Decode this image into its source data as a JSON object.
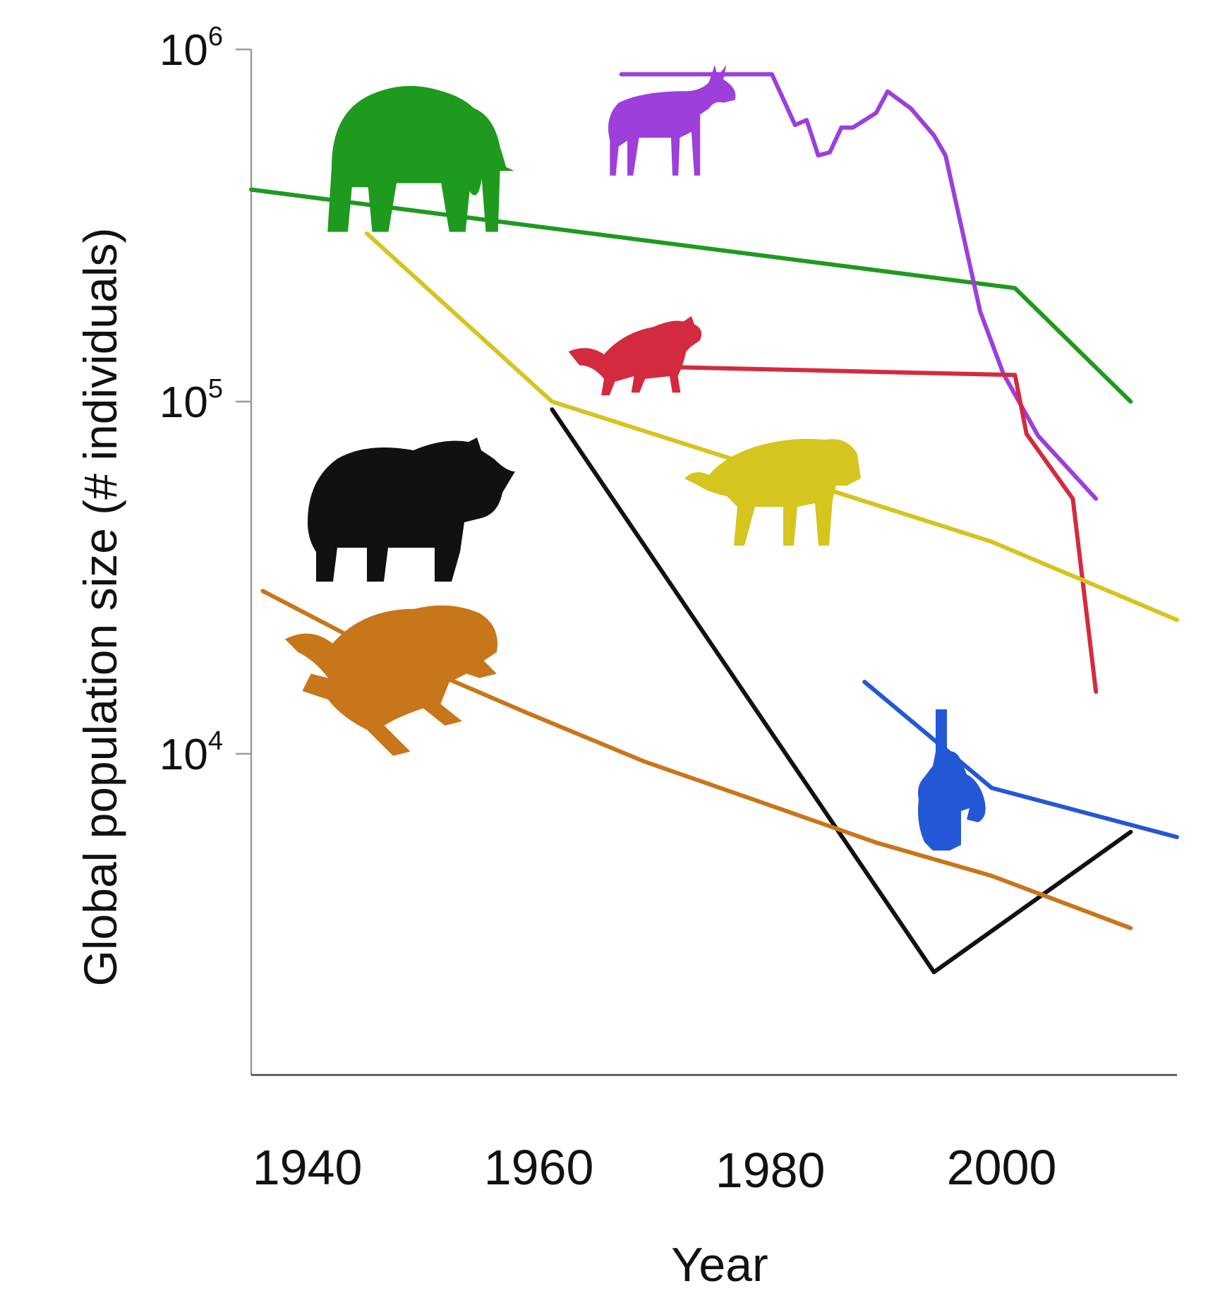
{
  "chart_data": {
    "type": "line",
    "title": "",
    "xlabel": "Year",
    "ylabel": "Global population size (# individuals)",
    "x_scale": "linear",
    "y_scale": "log",
    "xlim": [
      1936,
      2016
    ],
    "ylim": [
      1000,
      1000000
    ],
    "x_ticks": [
      {
        "value": 1940,
        "label": "1940"
      },
      {
        "value": 1960,
        "label": "1960"
      },
      {
        "value": 1980,
        "label": "1980"
      },
      {
        "value": 2000,
        "label": "2000"
      }
    ],
    "y_ticks": [
      {
        "value": 10000,
        "base": "10",
        "exp": "4"
      },
      {
        "value": 100000,
        "base": "10",
        "exp": "5"
      },
      {
        "value": 1000000,
        "base": "10",
        "exp": "6"
      }
    ],
    "grid": false,
    "legend": "none",
    "series": [
      {
        "icon": "elephant-icon",
        "color": "#1e9a1e",
        "x": [
          1936,
          2002,
          2012
        ],
        "y": [
          400000,
          210000,
          100000
        ]
      },
      {
        "icon": "antelope-icon",
        "color": "#9c3fdb",
        "x": [
          1968,
          1981,
          1983,
          1984,
          1985,
          1986,
          1987,
          1988,
          1990,
          1991,
          1993,
          1995,
          1996,
          1999,
          2001,
          2004,
          2009
        ],
        "y": [
          850000,
          850000,
          610000,
          630000,
          500000,
          510000,
          600000,
          600000,
          660000,
          760000,
          680000,
          570000,
          500000,
          180000,
          120000,
          80000,
          53000
        ]
      },
      {
        "icon": "tasmanian-devil-icon",
        "color": "#d42a3f",
        "x": [
          1969,
          2002,
          2003,
          2007,
          2009
        ],
        "y": [
          126000,
          119000,
          81000,
          53000,
          15000
        ]
      },
      {
        "icon": "lion-icon",
        "color": "#d6c41f",
        "x": [
          1946,
          1962,
          2000,
          2016
        ],
        "y": [
          300000,
          100000,
          40000,
          24000
        ]
      },
      {
        "icon": "rhino-icon",
        "color": "#111111",
        "x": [
          1962,
          1995,
          2012
        ],
        "y": [
          95000,
          2400,
          6000
        ]
      },
      {
        "icon": "cheetah-icon",
        "color": "#c8761a",
        "x": [
          1937,
          1944,
          1950,
          1960,
          1970,
          1980,
          1990,
          2000,
          2012
        ],
        "y": [
          29000,
          22000,
          18000,
          13000,
          9500,
          7300,
          5600,
          4500,
          3200
        ]
      },
      {
        "icon": "orangutan-icon",
        "color": "#2457d6",
        "x": [
          1989,
          2000,
          2016
        ],
        "y": [
          16000,
          8000,
          5800
        ]
      }
    ]
  }
}
